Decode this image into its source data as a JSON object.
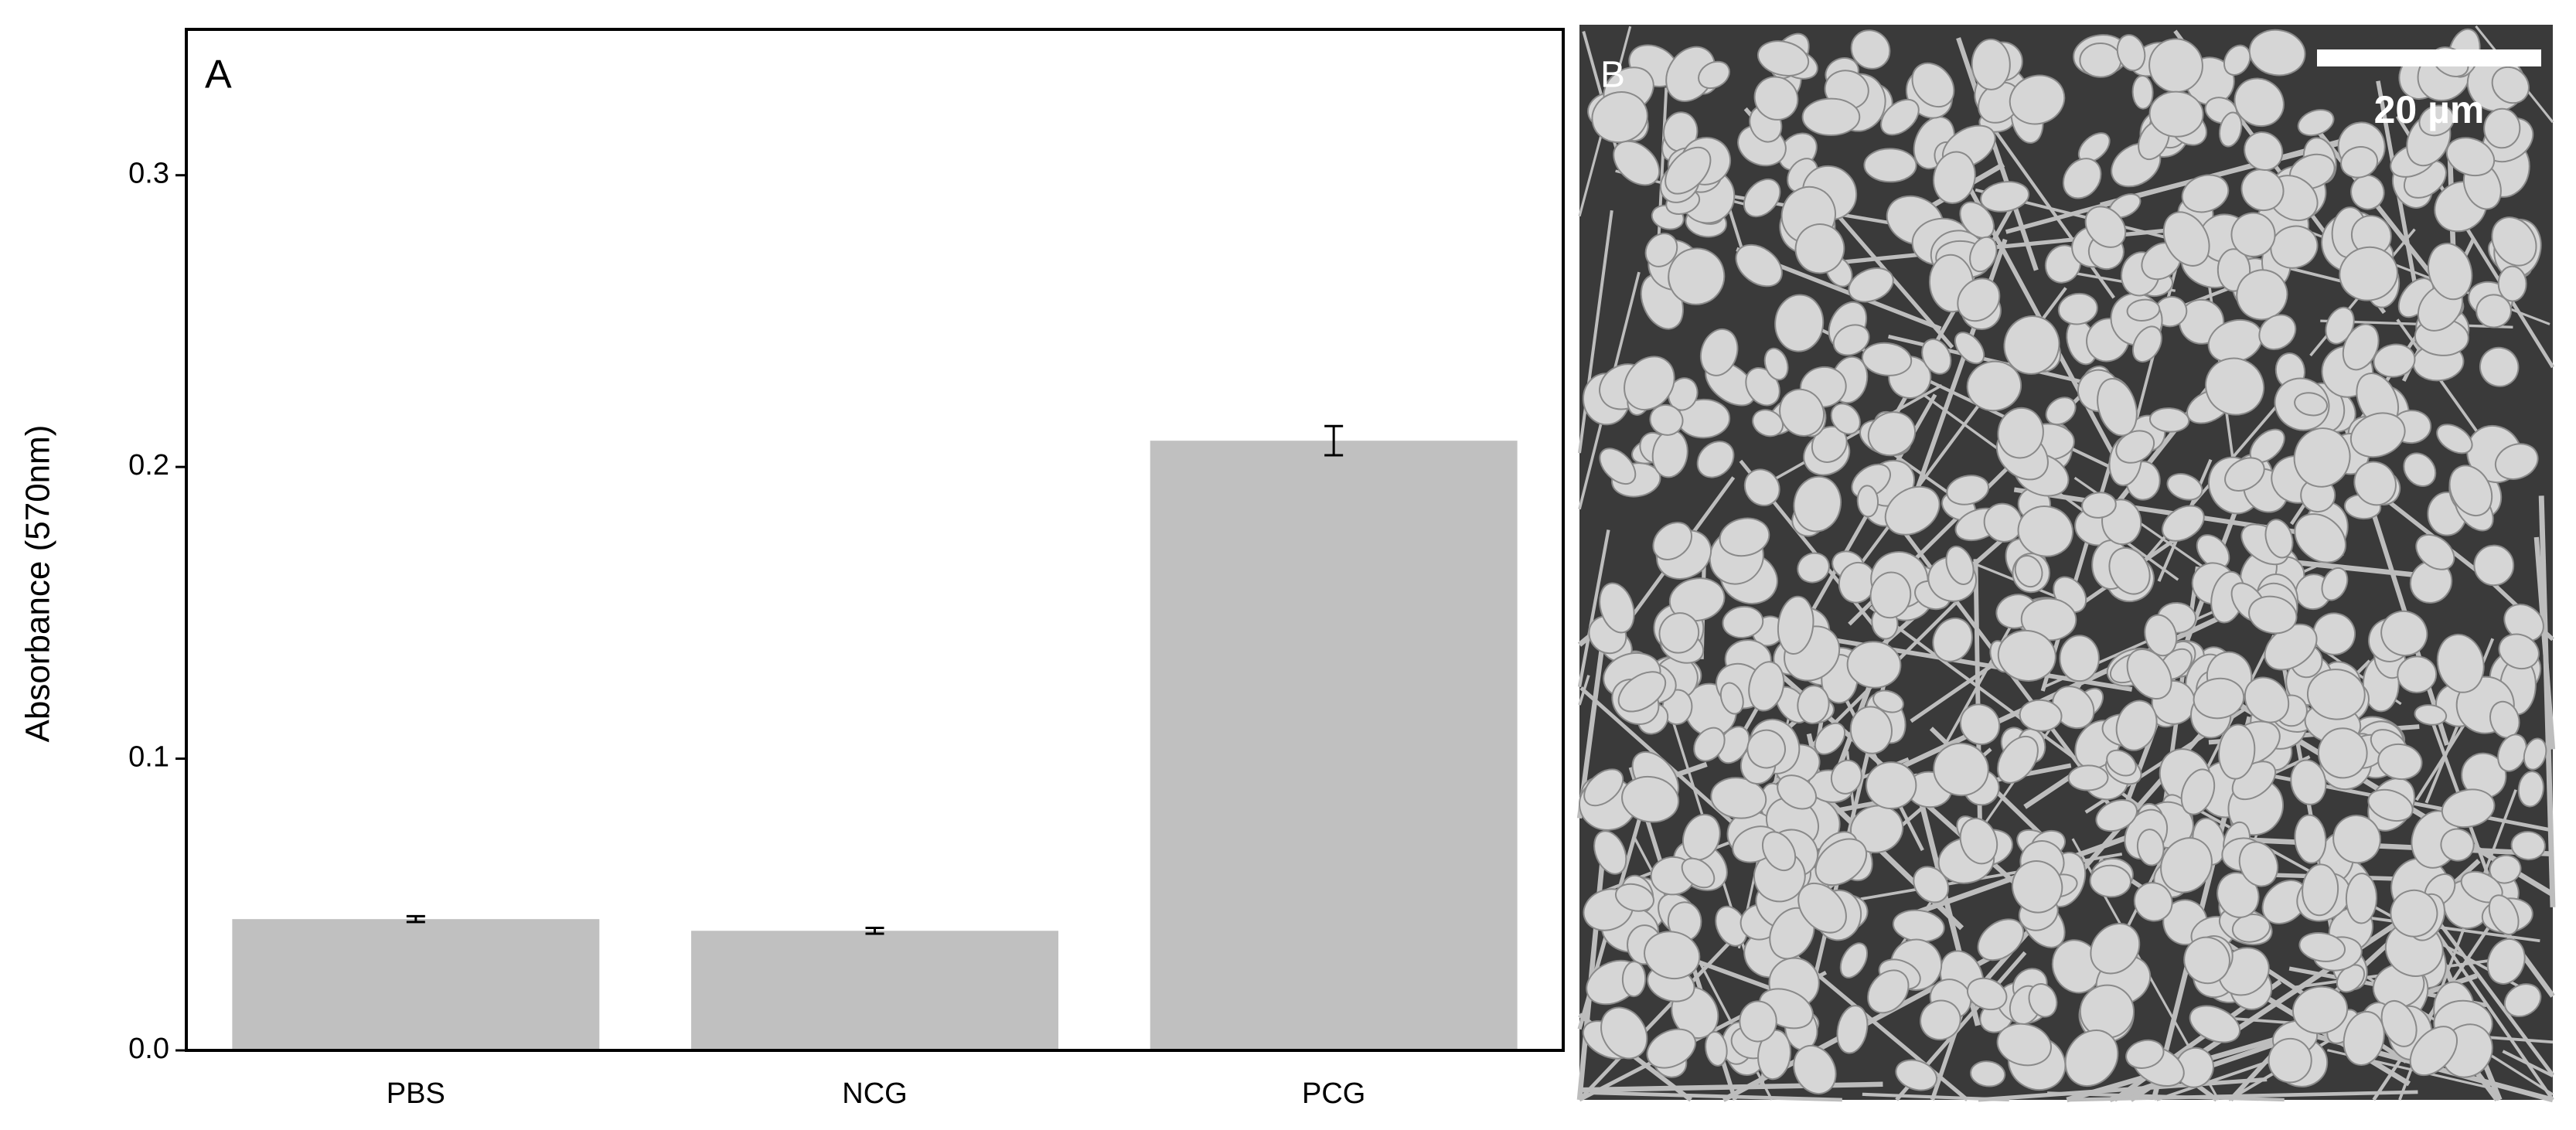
{
  "chart_data": {
    "type": "bar",
    "panel_label": "A",
    "y_label": "Absorbance (570nm)",
    "categories": [
      "PBS",
      "NCG",
      "PCG"
    ],
    "values": [
      0.045,
      0.041,
      0.209
    ],
    "errors": [
      0.001,
      0.001,
      0.005
    ],
    "color": "#c0c0c0",
    "ylim": [
      0,
      0.35
    ],
    "yticks": [
      {
        "value": 0,
        "label": "0.0"
      },
      0.1,
      0.2,
      0.3
    ]
  },
  "image_panel": {
    "panel_label": "B",
    "scale_bar": "20 µm"
  }
}
